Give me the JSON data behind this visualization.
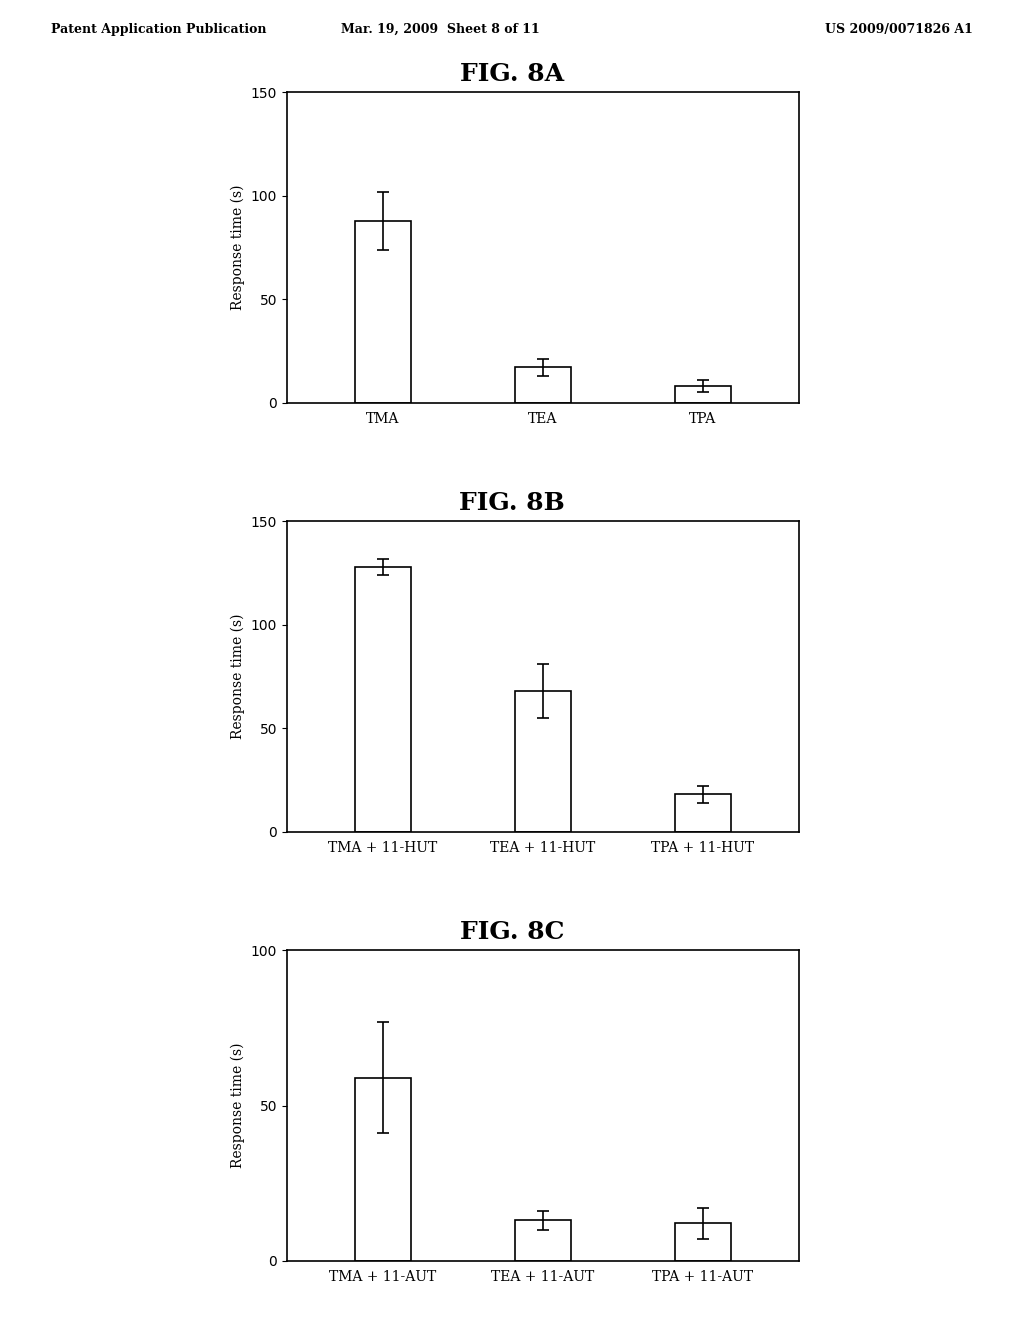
{
  "header_left": "Patent Application Publication",
  "header_mid": "Mar. 19, 2009  Sheet 8 of 11",
  "header_right": "US 2009/0071826 A1",
  "figA": {
    "title": "FIG. 8A",
    "categories": [
      "TMA",
      "TEA",
      "TPA"
    ],
    "values": [
      88,
      17,
      8
    ],
    "errors": [
      14,
      4,
      3
    ],
    "ylabel": "Response time (s)",
    "ylim": [
      0,
      150
    ],
    "yticks": [
      0,
      50,
      100,
      150
    ]
  },
  "figB": {
    "title": "FIG. 8B",
    "categories": [
      "TMA + 11-HUT",
      "TEA + 11-HUT",
      "TPA + 11-HUT"
    ],
    "values": [
      128,
      68,
      18
    ],
    "errors": [
      4,
      13,
      4
    ],
    "ylabel": "Response time (s)",
    "ylim": [
      0,
      150
    ],
    "yticks": [
      0,
      50,
      100,
      150
    ]
  },
  "figC": {
    "title": "FIG. 8C",
    "categories": [
      "TMA + 11-AUT",
      "TEA + 11-AUT",
      "TPA + 11-AUT"
    ],
    "values": [
      59,
      13,
      12
    ],
    "errors": [
      18,
      3,
      5
    ],
    "ylabel": "Response time (s)",
    "ylim": [
      0,
      100
    ],
    "yticks": [
      0,
      50,
      100
    ]
  },
  "bar_color": "white",
  "bar_edgecolor": "black",
  "bar_width": 0.35,
  "capsize": 4,
  "background_color": "white",
  "text_color": "black",
  "header_fontsize": 9,
  "title_fontsize": 18,
  "tick_fontsize": 10,
  "ylabel_fontsize": 10
}
